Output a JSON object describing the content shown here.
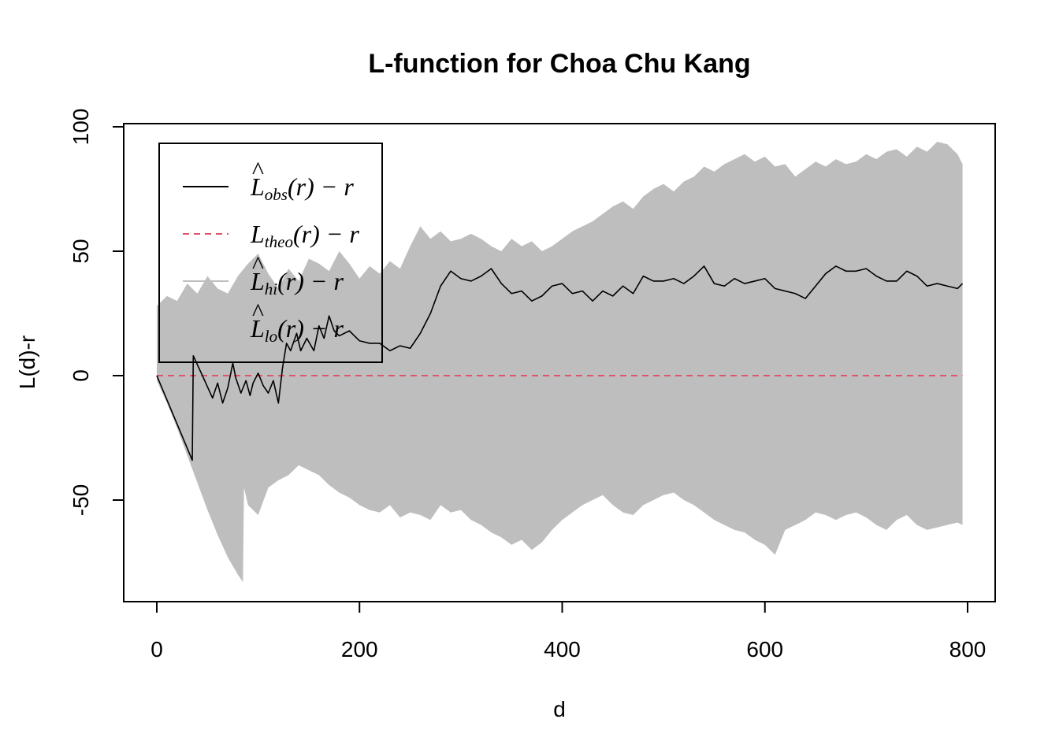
{
  "chart_data": {
    "type": "line",
    "title": "L-function for Choa Chu Kang",
    "xlabel": "d",
    "ylabel": "L(d)-r",
    "xlim": [
      0,
      800
    ],
    "ylim": [
      -90,
      100
    ],
    "xticks": [
      0,
      200,
      400,
      600,
      800
    ],
    "yticks": [
      -50,
      0,
      50,
      100
    ],
    "grid": false,
    "legend_position": "top-left",
    "legend": [
      {
        "main": "L",
        "hat": "^",
        "sub": "obs",
        "rest": "(r) − r",
        "style": "solid",
        "color": "#000000"
      },
      {
        "main": "L",
        "hat": "",
        "sub": "theo",
        "rest": "(r) − r",
        "style": "dashed",
        "color": "#DF536B"
      },
      {
        "main": "L",
        "hat": "^",
        "sub": "hi",
        "rest": "(r) − r",
        "style": "solid",
        "color": "#bebebe"
      },
      {
        "main": "L",
        "hat": "^",
        "sub": "lo",
        "rest": "(r) − r",
        "style": "solid",
        "color": "#bebebe"
      }
    ],
    "colors": {
      "envelope": "#bebebe",
      "observed": "#000000",
      "theoretical": "#DF536B"
    },
    "series": [
      {
        "name": "obs",
        "x": [
          0,
          35,
          36,
          45,
          55,
          60,
          65,
          70,
          75,
          78,
          83,
          88,
          92,
          95,
          100,
          105,
          110,
          115,
          120,
          124,
          128,
          132,
          138,
          142,
          148,
          155,
          160,
          165,
          170,
          175,
          180,
          190,
          200,
          210,
          220,
          230,
          240,
          250,
          260,
          270,
          280,
          290,
          300,
          310,
          320,
          330,
          340,
          350,
          360,
          370,
          380,
          390,
          400,
          410,
          420,
          430,
          440,
          450,
          460,
          470,
          480,
          490,
          500,
          510,
          520,
          530,
          540,
          550,
          560,
          570,
          580,
          590,
          600,
          610,
          620,
          630,
          640,
          650,
          660,
          670,
          680,
          690,
          700,
          710,
          720,
          730,
          740,
          750,
          760,
          770,
          780,
          790,
          795
        ],
        "y": [
          0,
          -34,
          8,
          0,
          -9,
          -3,
          -11,
          -5,
          5,
          -1,
          -7,
          -2,
          -8,
          -3,
          1,
          -4,
          -7,
          -2,
          -11,
          3,
          13,
          10,
          17,
          10,
          15,
          10,
          20,
          15,
          24,
          18,
          16,
          18,
          14,
          13,
          13,
          10,
          12,
          11,
          17,
          25,
          36,
          42,
          39,
          38,
          40,
          43,
          37,
          33,
          34,
          30,
          32,
          36,
          37,
          33,
          34,
          30,
          34,
          32,
          36,
          33,
          40,
          38,
          38,
          39,
          37,
          40,
          44,
          37,
          36,
          39,
          37,
          38,
          39,
          35,
          34,
          33,
          31,
          36,
          41,
          44,
          42,
          42,
          43,
          40,
          38,
          38,
          42,
          40,
          36,
          37,
          36,
          35,
          37
        ]
      },
      {
        "name": "theo",
        "x": [
          0,
          795
        ],
        "y": [
          0,
          0
        ]
      },
      {
        "name": "hi",
        "x": [
          0,
          10,
          20,
          30,
          40,
          50,
          60,
          70,
          80,
          90,
          100,
          110,
          120,
          130,
          140,
          150,
          160,
          170,
          180,
          190,
          200,
          210,
          220,
          230,
          240,
          250,
          260,
          270,
          280,
          290,
          300,
          310,
          320,
          330,
          340,
          350,
          360,
          370,
          380,
          390,
          400,
          410,
          420,
          430,
          440,
          450,
          460,
          470,
          480,
          490,
          500,
          510,
          520,
          530,
          540,
          550,
          560,
          570,
          580,
          590,
          600,
          610,
          620,
          630,
          640,
          650,
          660,
          670,
          680,
          690,
          700,
          710,
          720,
          730,
          740,
          750,
          760,
          770,
          780,
          790,
          795
        ],
        "y": [
          28,
          32,
          30,
          37,
          33,
          40,
          35,
          33,
          40,
          45,
          49,
          41,
          35,
          43,
          38,
          47,
          45,
          42,
          50,
          45,
          39,
          44,
          41,
          46,
          43,
          52,
          60,
          55,
          58,
          54,
          55,
          57,
          55,
          52,
          50,
          55,
          52,
          54,
          50,
          52,
          55,
          58,
          60,
          62,
          65,
          68,
          70,
          67,
          72,
          75,
          77,
          74,
          78,
          80,
          84,
          82,
          85,
          87,
          89,
          86,
          88,
          84,
          85,
          80,
          83,
          86,
          84,
          87,
          85,
          86,
          89,
          87,
          90,
          91,
          88,
          92,
          90,
          94,
          93,
          89,
          85
        ]
      },
      {
        "name": "lo",
        "x": [
          0,
          10,
          20,
          30,
          40,
          50,
          60,
          70,
          80,
          85,
          86,
          90,
          100,
          110,
          120,
          130,
          140,
          150,
          160,
          170,
          180,
          190,
          200,
          210,
          220,
          230,
          240,
          250,
          260,
          270,
          280,
          290,
          300,
          310,
          320,
          330,
          340,
          350,
          360,
          370,
          380,
          390,
          400,
          410,
          420,
          430,
          440,
          450,
          460,
          470,
          480,
          490,
          500,
          510,
          520,
          530,
          540,
          550,
          560,
          570,
          580,
          590,
          600,
          610,
          620,
          630,
          640,
          650,
          660,
          670,
          680,
          690,
          700,
          710,
          720,
          730,
          740,
          750,
          760,
          770,
          780,
          790,
          795
        ],
        "y": [
          -2,
          -11,
          -21,
          -32,
          -43,
          -54,
          -64,
          -73,
          -80,
          -83,
          -45,
          -52,
          -56,
          -45,
          -42,
          -40,
          -36,
          -38,
          -40,
          -44,
          -47,
          -49,
          -52,
          -54,
          -55,
          -52,
          -57,
          -55,
          -56,
          -58,
          -52,
          -55,
          -54,
          -58,
          -60,
          -63,
          -65,
          -68,
          -66,
          -70,
          -67,
          -62,
          -58,
          -55,
          -52,
          -50,
          -48,
          -52,
          -55,
          -56,
          -52,
          -50,
          -48,
          -47,
          -50,
          -52,
          -55,
          -58,
          -60,
          -62,
          -63,
          -66,
          -68,
          -72,
          -62,
          -60,
          -58,
          -55,
          -56,
          -58,
          -56,
          -55,
          -57,
          -60,
          -62,
          -58,
          -56,
          -60,
          -62,
          -61,
          -60,
          -59,
          -60
        ]
      }
    ]
  }
}
